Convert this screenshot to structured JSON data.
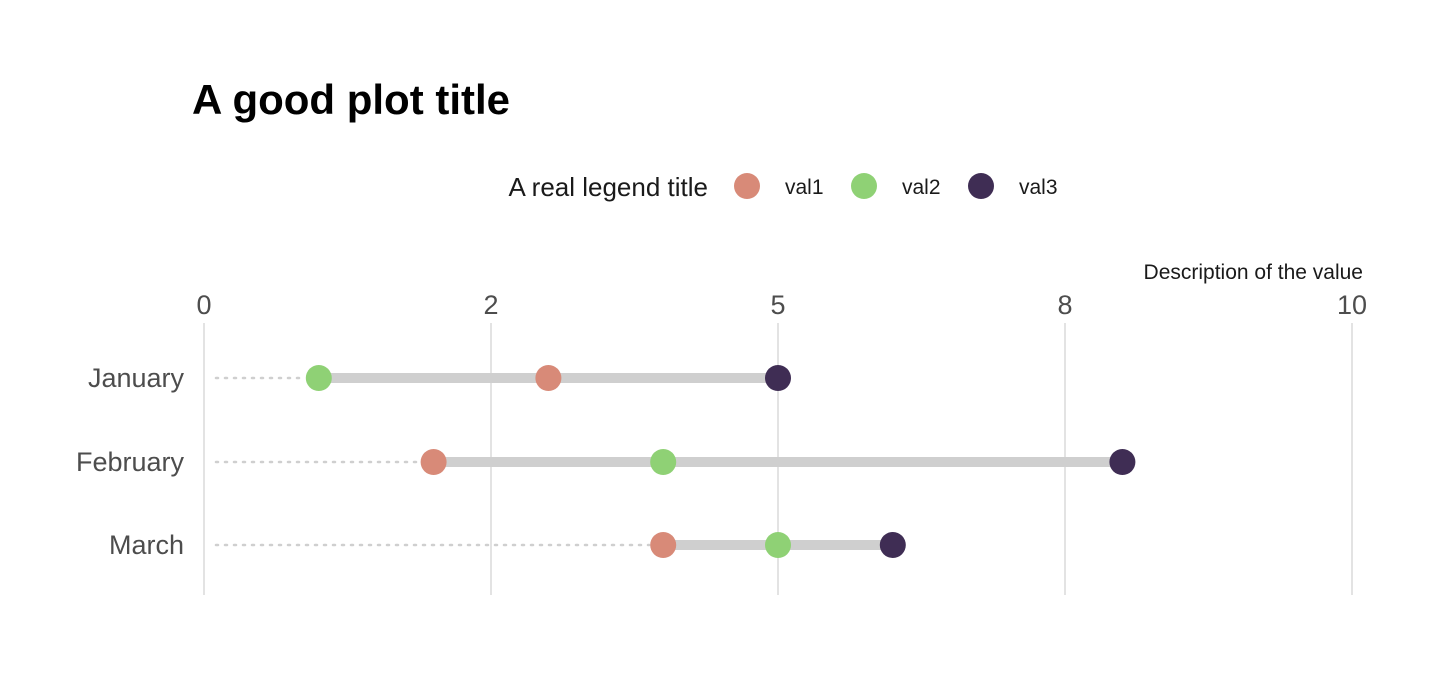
{
  "chart_data": {
    "type": "dumbbell",
    "title": "A good plot title",
    "xlabel": "Description of the value",
    "xlim": [
      0,
      10
    ],
    "x_ticks": [
      0,
      2.5,
      5,
      7.5,
      10
    ],
    "x_tick_labels": [
      "0",
      "2",
      "5",
      "8",
      "10"
    ],
    "axis_position": "top",
    "grid": "vertical",
    "legend": {
      "title": "A real legend title",
      "position": "top",
      "entries": [
        "val1",
        "val2",
        "val3"
      ]
    },
    "categories": [
      "January",
      "February",
      "March"
    ],
    "series": [
      {
        "name": "val1",
        "color": "#D88A78",
        "values": [
          3,
          2,
          4
        ]
      },
      {
        "name": "val2",
        "color": "#8FD175",
        "values": [
          1,
          4,
          5
        ]
      },
      {
        "name": "val3",
        "color": "#3F2D54",
        "values": [
          5,
          8,
          6
        ]
      }
    ],
    "connector_color": "#CFCFCF",
    "leader_color": "#CFCFCF"
  }
}
